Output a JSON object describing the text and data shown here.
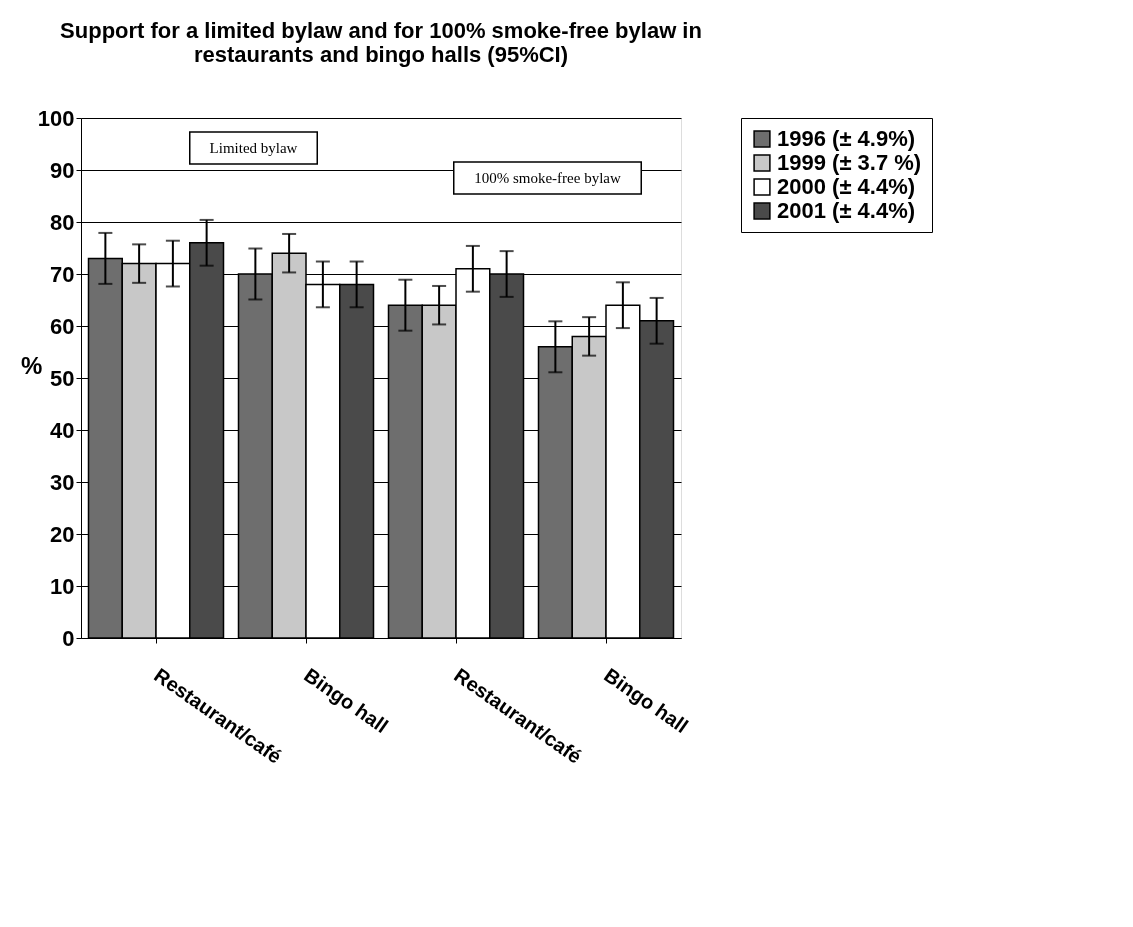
{
  "chart_data": {
    "type": "bar",
    "title": "Support for a limited bylaw and for 100% smoke-free bylaw in restaurants and bingo halls (95%CI)",
    "ylabel": "%",
    "categories": [
      "Restaurant/café",
      "Bingo hall",
      "Restaurant/café",
      "Bingo hall"
    ],
    "series": [
      {
        "name": "1996 (± 4.9%)",
        "color": "#6e6e6e",
        "values": [
          73,
          70,
          64,
          56
        ],
        "errors": [
          4.9,
          4.9,
          4.9,
          4.9
        ]
      },
      {
        "name": "1999 (± 3.7 %)",
        "color": "#c8c8c8",
        "values": [
          72,
          74,
          64,
          58
        ],
        "errors": [
          3.7,
          3.7,
          3.7,
          3.7
        ]
      },
      {
        "name": "2000 (± 4.4%)",
        "color": "#ffffff",
        "values": [
          72,
          68,
          71,
          64
        ],
        "errors": [
          4.4,
          4.4,
          4.4,
          4.4
        ]
      },
      {
        "name": "2001 (± 4.4%)",
        "color": "#4a4a4a",
        "values": [
          76,
          68,
          70,
          61
        ],
        "errors": [
          4.4,
          4.4,
          4.4,
          4.4
        ]
      }
    ],
    "annotations": [
      "Limited bylaw",
      "100% smoke-free bylaw"
    ],
    "ylim": [
      0,
      100
    ],
    "yticks": [
      0,
      10,
      20,
      30,
      40,
      50,
      60,
      70,
      80,
      90,
      100
    ],
    "grid": "y",
    "legend": "top right"
  }
}
